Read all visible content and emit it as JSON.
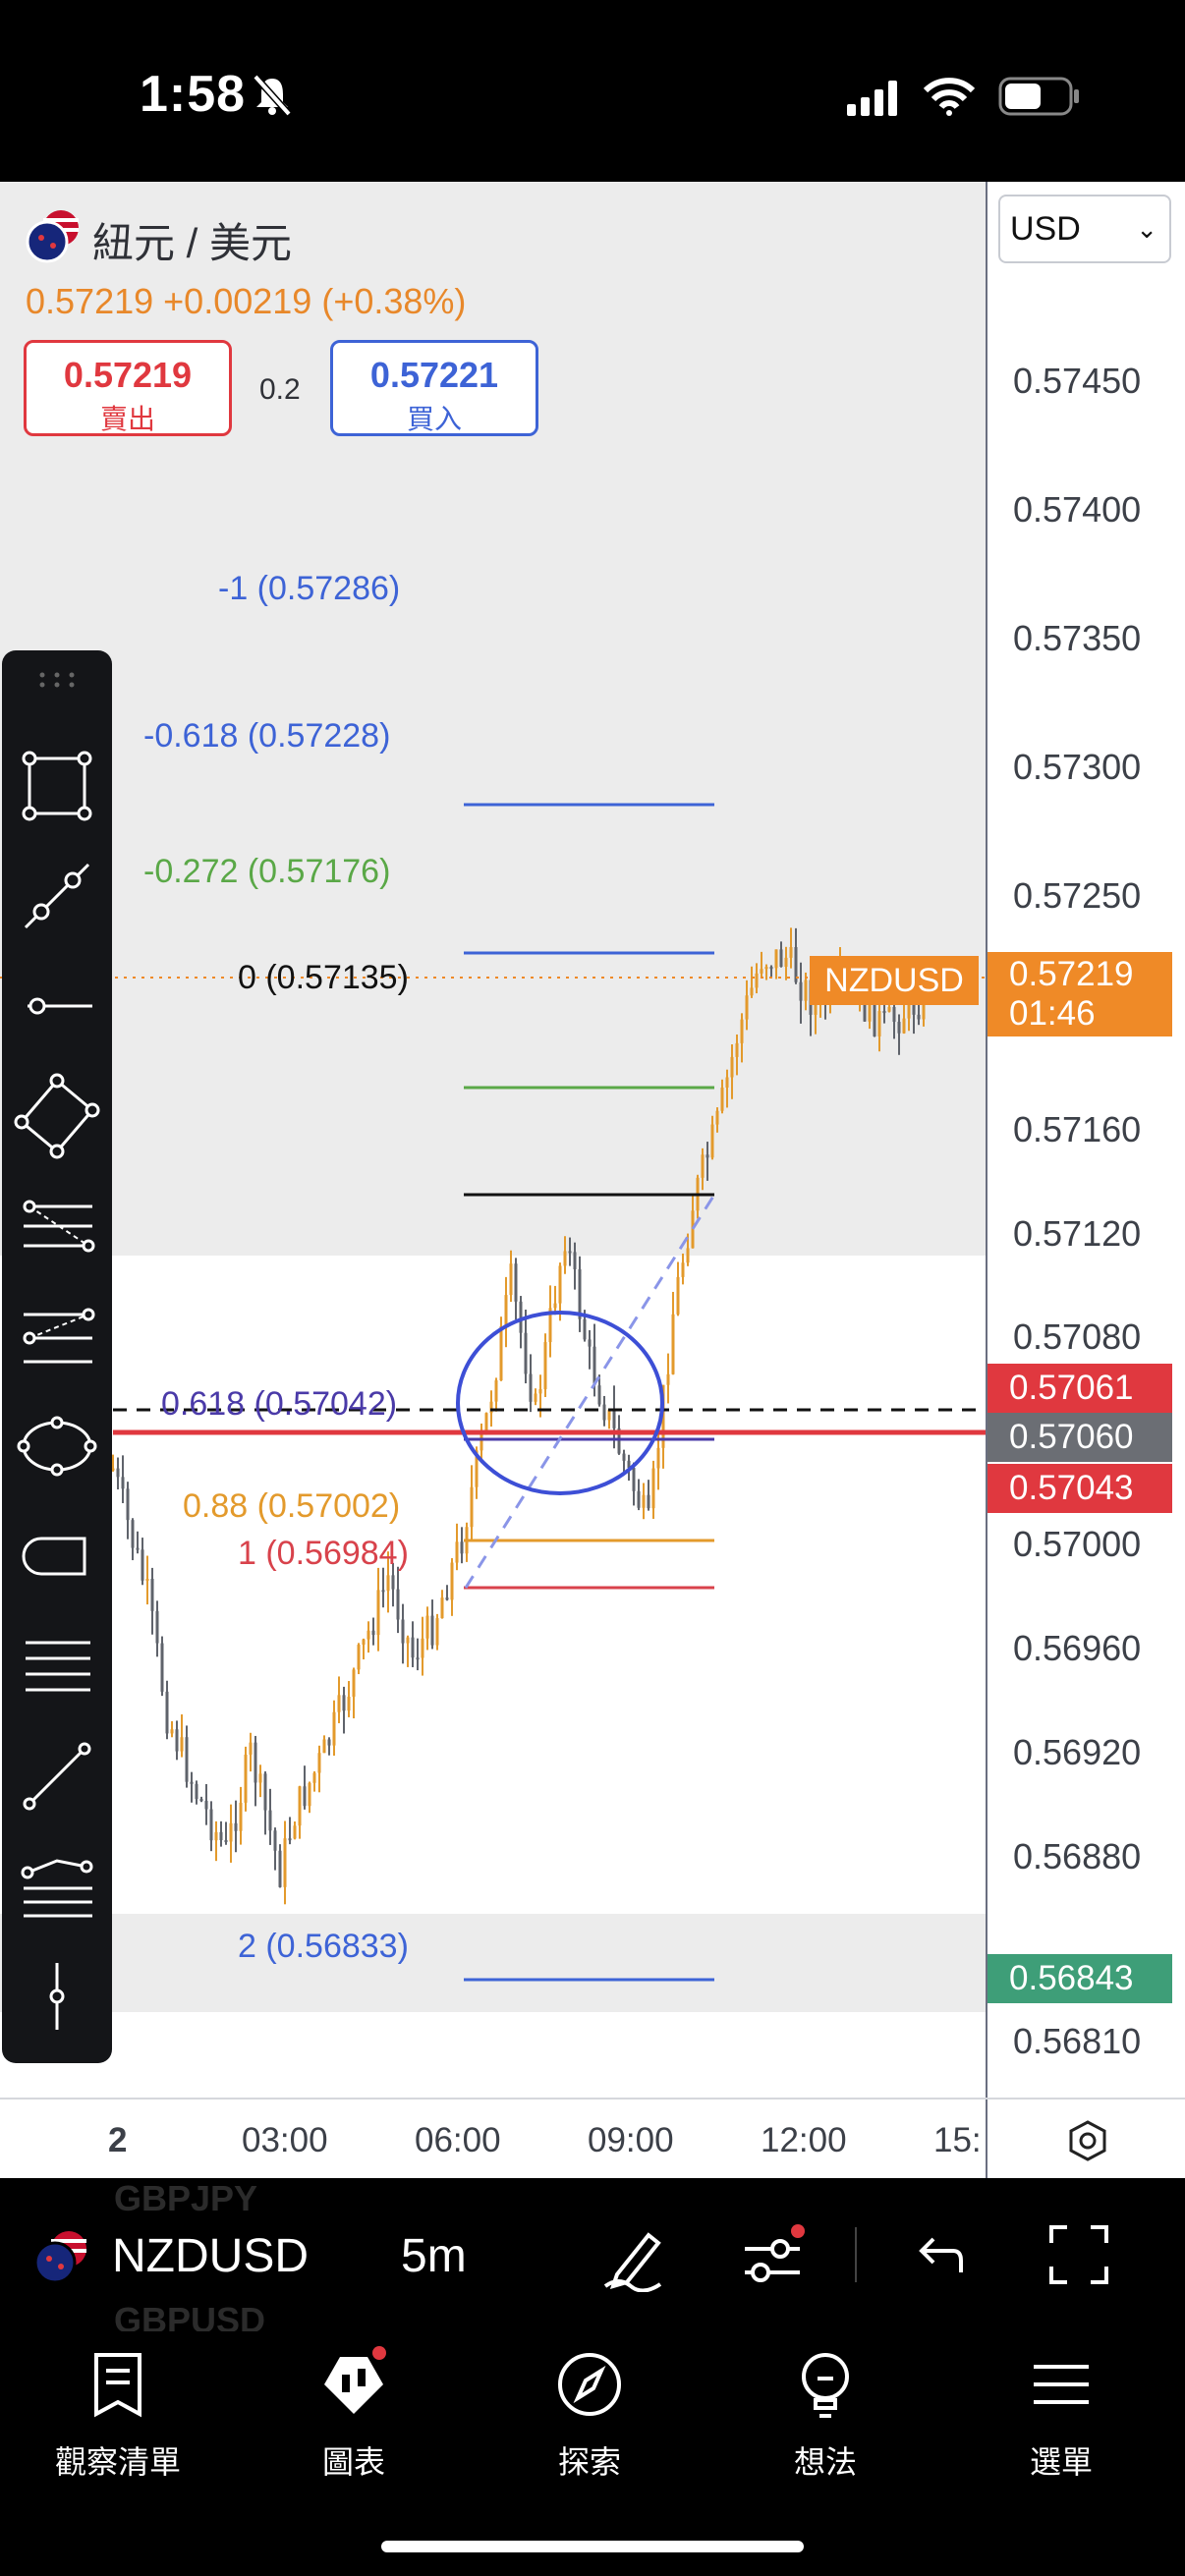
{
  "status_bar": {
    "time": "1:58"
  },
  "symbol": {
    "name": "紐元 / 美元",
    "last": "0.57219",
    "change": "+0.00219",
    "change_pct": "(+0.38%)",
    "sell_price": "0.57219",
    "sell_label": "賣出",
    "spread": "0.2",
    "buy_price": "0.57221",
    "buy_label": "買入"
  },
  "currency_select": {
    "value": "USD"
  },
  "price_axis": {
    "labels": [
      "0.57450",
      "0.57400",
      "0.57350",
      "0.57300",
      "0.57250",
      "0.57160",
      "0.57120",
      "0.57080",
      "0.57000",
      "0.56960",
      "0.56920",
      "0.56880",
      "0.56810"
    ],
    "tags": [
      {
        "name": "NZDUSD",
        "value": "0.57219",
        "sub": "01:46",
        "color": "#ef8a27"
      },
      {
        "value": "0.57061",
        "color": "#e0383f"
      },
      {
        "value": "0.57060",
        "color": "#6b6e74"
      },
      {
        "value": "0.57043",
        "color": "#e0383f"
      },
      {
        "value": "0.56843",
        "color": "#3e9e78"
      }
    ]
  },
  "time_axis": {
    "labels": [
      "2",
      "03:00",
      "06:00",
      "09:00",
      "12:00",
      "15:"
    ]
  },
  "fib_levels": [
    {
      "label": "-1 (0.57286)",
      "color": "#3d63d6"
    },
    {
      "label": "-0.618 (0.57228)",
      "color": "#3d63d6"
    },
    {
      "label": "-0.272 (0.57176)",
      "color": "#5aa847"
    },
    {
      "label": "0 (0.57135)",
      "color": "#111111"
    },
    {
      "label": "0.618 (0.57042)",
      "color": "#4a3aa8"
    },
    {
      "label": "0.88 (0.57002)",
      "color": "#e39a2c"
    },
    {
      "label": "1 (0.56984)",
      "color": "#d8424b"
    },
    {
      "label": "2 (0.56833)",
      "color": "#3d63d6"
    }
  ],
  "chart_toolbar": {
    "symbol": "NZDUSD",
    "interval": "5m",
    "ghost_top": "GBPJPY",
    "ghost_bottom": "GBPUSD"
  },
  "tabs": [
    {
      "label": "觀察清單",
      "icon": "watchlist-icon"
    },
    {
      "label": "圖表",
      "icon": "chart-icon"
    },
    {
      "label": "探索",
      "icon": "compass-icon"
    },
    {
      "label": "想法",
      "icon": "lightbulb-icon"
    },
    {
      "label": "選單",
      "icon": "menu-icon"
    }
  ],
  "colors": {
    "accent_orange": "#ef8a27",
    "buy_blue": "#3d63d6",
    "sell_red": "#e0383f",
    "green": "#3e9e78"
  }
}
